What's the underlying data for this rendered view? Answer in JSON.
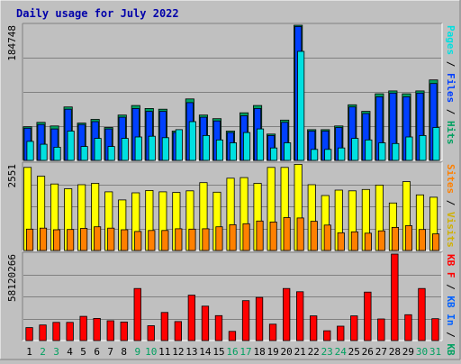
{
  "title": "Daily usage for July 2022",
  "right_labels": {
    "top": [
      {
        "text": "Pages",
        "color": "#00e0e0"
      },
      {
        "text": " / ",
        "color": "#000000"
      },
      {
        "text": "Files",
        "color": "#0040ff"
      },
      {
        "text": " / ",
        "color": "#000000"
      },
      {
        "text": "Hits",
        "color": "#00a060"
      }
    ],
    "middle": [
      {
        "text": "Sites",
        "color": "#ff8000"
      },
      {
        "text": " / ",
        "color": "#000000"
      },
      {
        "text": "Visits",
        "color": "#d0b000"
      }
    ],
    "bottom": [
      {
        "text": "KB F",
        "color": "#ff0000"
      },
      {
        "text": " / ",
        "color": "#000000"
      },
      {
        "text": "KB In",
        "color": "#0060ff"
      },
      {
        "text": " / ",
        "color": "#000000"
      },
      {
        "text": "KB Out",
        "color": "#00a060"
      }
    ]
  },
  "chart_data": [
    {
      "type": "bar",
      "panel": "hits-files-pages",
      "ymax_label": "184748",
      "ylim": [
        0,
        184748
      ],
      "categories": [
        "1",
        "2",
        "3",
        "4",
        "5",
        "6",
        "7",
        "8",
        "9",
        "10",
        "11",
        "12",
        "13",
        "14",
        "15",
        "16",
        "17",
        "18",
        "19",
        "20",
        "21",
        "22",
        "23",
        "24",
        "25",
        "26",
        "27",
        "28",
        "29",
        "30",
        "31"
      ],
      "weekend_days": [
        "2",
        "3",
        "9",
        "10",
        "16",
        "17",
        "23",
        "24",
        "30",
        "31"
      ],
      "series": [
        {
          "name": "Hits",
          "color": "#00a060",
          "values": [
            46000,
            52000,
            47000,
            73000,
            51000,
            56000,
            45000,
            62000,
            75000,
            71000,
            70000,
            40000,
            84000,
            62000,
            57000,
            40000,
            65000,
            75000,
            36000,
            55000,
            184748,
            42000,
            42000,
            47000,
            76000,
            67000,
            91000,
            95000,
            91000,
            95000,
            110000
          ]
        },
        {
          "name": "Files",
          "color": "#0040ff",
          "values": [
            44000,
            49000,
            43000,
            70000,
            49000,
            53000,
            43000,
            59000,
            71000,
            67000,
            67000,
            38000,
            79000,
            59000,
            54000,
            38000,
            61000,
            71000,
            34000,
            52000,
            183000,
            40000,
            40000,
            45000,
            73000,
            64000,
            87000,
            92000,
            87000,
            92000,
            105000
          ]
        },
        {
          "name": "Pages",
          "color": "#00e0e0",
          "values": [
            26000,
            22000,
            18000,
            40000,
            19000,
            30000,
            19000,
            30000,
            32000,
            33000,
            31000,
            42000,
            53000,
            34000,
            28000,
            24000,
            38000,
            43000,
            17000,
            24000,
            149000,
            15000,
            15000,
            17000,
            30000,
            28000,
            24000,
            23000,
            32000,
            34000,
            45000
          ]
        }
      ]
    },
    {
      "type": "bar",
      "panel": "visits-sites",
      "ymax_label": "2551",
      "ylim": [
        0,
        2551
      ],
      "categories": [
        "1",
        "2",
        "3",
        "4",
        "5",
        "6",
        "7",
        "8",
        "9",
        "10",
        "11",
        "12",
        "13",
        "14",
        "15",
        "16",
        "17",
        "18",
        "19",
        "20",
        "21",
        "22",
        "23",
        "24",
        "25",
        "26",
        "27",
        "28",
        "29",
        "30",
        "31"
      ],
      "series": [
        {
          "name": "Visits",
          "color": "#ffff00",
          "values": [
            2450,
            2190,
            1960,
            1820,
            1940,
            1980,
            1730,
            1490,
            1700,
            1770,
            1730,
            1710,
            1760,
            2000,
            1720,
            2130,
            2150,
            1980,
            2450,
            2450,
            2540,
            1940,
            1620,
            1780,
            1760,
            1800,
            1930,
            1400,
            2030,
            1640,
            1570
          ]
        },
        {
          "name": "Sites",
          "color": "#ff8000",
          "values": [
            630,
            660,
            610,
            620,
            650,
            700,
            660,
            610,
            560,
            590,
            590,
            640,
            630,
            640,
            700,
            760,
            790,
            870,
            840,
            970,
            960,
            860,
            750,
            520,
            550,
            510,
            580,
            680,
            730,
            620,
            490
          ]
        }
      ]
    },
    {
      "type": "bar",
      "panel": "kbytes",
      "ymax_label": "58120266",
      "ylim": [
        0,
        58120266
      ],
      "categories": [
        "1",
        "2",
        "3",
        "4",
        "5",
        "6",
        "7",
        "8",
        "9",
        "10",
        "11",
        "12",
        "13",
        "14",
        "15",
        "16",
        "17",
        "18",
        "19",
        "20",
        "21",
        "22",
        "23",
        "24",
        "25",
        "26",
        "27",
        "28",
        "29",
        "30",
        "31"
      ],
      "series": [
        {
          "name": "KB F",
          "color": "#ff0000",
          "values": [
            8700000,
            10500000,
            12200000,
            12200000,
            16300000,
            14900000,
            13300000,
            12500000,
            35000000,
            10000000,
            18900000,
            12800000,
            30500000,
            23100000,
            16800000,
            6200000,
            26800000,
            29000000,
            11000000,
            35000000,
            32800000,
            16600000,
            6600000,
            9700000,
            16600000,
            32600000,
            14500000,
            58120266,
            17400000,
            35000000,
            14700000
          ]
        }
      ]
    }
  ]
}
